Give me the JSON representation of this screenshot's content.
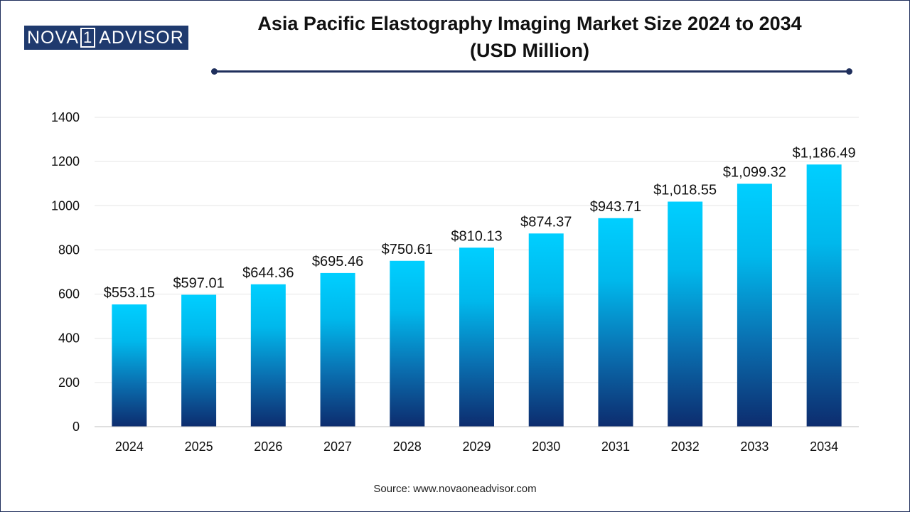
{
  "brand": {
    "left": "NOVA",
    "box": "1",
    "right": "ADVISOR"
  },
  "title_line1": "Asia Pacific Elastography Imaging Market Size 2024 to 2034",
  "title_line2": "(USD Million)",
  "source": "Source: www.novaoneadvisor.com",
  "colors": {
    "bar_top": "#00cfff",
    "bar_bottom": "#0d2c6e",
    "accent": "#1f2f5c"
  },
  "chart_data": {
    "type": "bar",
    "title": "Asia Pacific Elastography Imaging Market Size 2024 to 2034 (USD Million)",
    "xlabel": "",
    "ylabel": "",
    "categories": [
      "2024",
      "2025",
      "2026",
      "2027",
      "2028",
      "2029",
      "2030",
      "2031",
      "2032",
      "2033",
      "2034"
    ],
    "values": [
      553.15,
      597.01,
      644.36,
      695.46,
      750.61,
      810.13,
      874.37,
      943.71,
      1018.55,
      1099.32,
      1186.49
    ],
    "value_labels": [
      "$553.15",
      "$597.01",
      "$644.36",
      "$695.46",
      "$750.61",
      "$810.13",
      "$874.37",
      "$943.71",
      "$1,018.55",
      "$1,099.32",
      "$1,186.49"
    ],
    "ylim": [
      0,
      1400
    ],
    "yticks": [
      0,
      200,
      400,
      600,
      800,
      1000,
      1200,
      1400
    ],
    "grid": true,
    "legend": "none"
  }
}
